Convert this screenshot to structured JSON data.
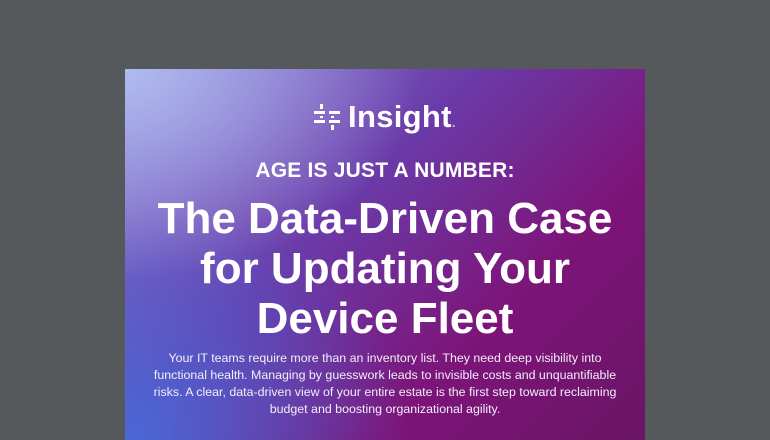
{
  "colors": {
    "background": "#56595b",
    "gradient_top_left": "#b2bef0",
    "gradient_top_right": "#7d1478",
    "gradient_bottom_left": "#466edc",
    "text": "#ffffff"
  },
  "logo": {
    "icon": "insight-logo-icon",
    "text": "Insight"
  },
  "kicker": "AGE IS JUST A NUMBER:",
  "title_lines": [
    "The Data-Driven Case",
    "for Updating Your",
    "Device Fleet"
  ],
  "paragraph": "Your IT teams require more than an inventory list. They need deep visibility into functional health. Managing by guesswork leads to invisible costs and unquantifiable risks. A clear, data-driven view of your entire estate is the first step toward reclaiming budget and boosting organizational agility."
}
